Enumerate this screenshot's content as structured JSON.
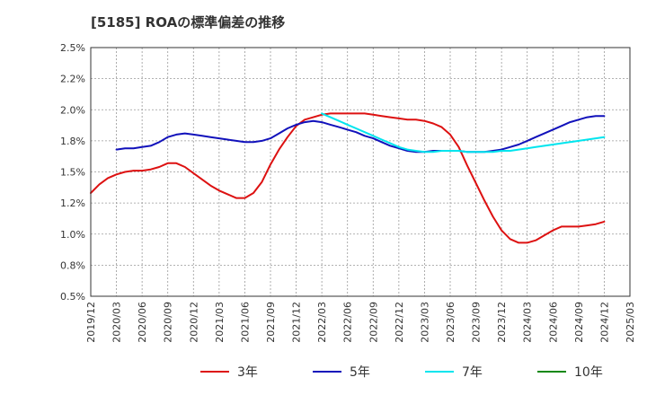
{
  "title": "[5185]  ROAの標準偏差の推移",
  "chart_data": {
    "type": "line",
    "title": "[5185]  ROAの標準偏差の推移",
    "xlabel": "",
    "ylabel": "",
    "ylim": [
      0.5,
      2.5
    ],
    "x_tick_labels": [
      "2019/12",
      "2020/03",
      "2020/06",
      "2020/09",
      "2020/12",
      "2021/03",
      "2021/06",
      "2021/09",
      "2021/12",
      "2022/03",
      "2022/06",
      "2022/09",
      "2022/12",
      "2023/03",
      "2023/06",
      "2023/09",
      "2023/12",
      "2024/03",
      "2024/06",
      "2024/09",
      "2024/12",
      "2025/03"
    ],
    "y_tick_values": [
      0.5,
      0.75,
      1.0,
      1.25,
      1.5,
      1.75,
      2.0,
      2.25,
      2.5
    ],
    "y_tick_labels": [
      "0.5%",
      "0.8%",
      "1.0%",
      "1.2%",
      "1.5%",
      "1.8%",
      "2.0%",
      "2.2%",
      "2.5%"
    ],
    "grid": true,
    "legend_position": "bottom",
    "series": [
      {
        "name": "3年",
        "color": "#dd1111",
        "points": [
          [
            "2019/12",
            1.33
          ],
          [
            "2020/01",
            1.4
          ],
          [
            "2020/02",
            1.45
          ],
          [
            "2020/03",
            1.48
          ],
          [
            "2020/04",
            1.5
          ],
          [
            "2020/05",
            1.51
          ],
          [
            "2020/06",
            1.51
          ],
          [
            "2020/07",
            1.52
          ],
          [
            "2020/08",
            1.54
          ],
          [
            "2020/09",
            1.57
          ],
          [
            "2020/10",
            1.57
          ],
          [
            "2020/11",
            1.54
          ],
          [
            "2020/12",
            1.49
          ],
          [
            "2021/01",
            1.44
          ],
          [
            "2021/02",
            1.39
          ],
          [
            "2021/03",
            1.35
          ],
          [
            "2021/04",
            1.32
          ],
          [
            "2021/05",
            1.29
          ],
          [
            "2021/06",
            1.29
          ],
          [
            "2021/07",
            1.33
          ],
          [
            "2021/08",
            1.42
          ],
          [
            "2021/09",
            1.56
          ],
          [
            "2021/10",
            1.68
          ],
          [
            "2021/11",
            1.78
          ],
          [
            "2021/12",
            1.87
          ],
          [
            "2022/01",
            1.92
          ],
          [
            "2022/02",
            1.94
          ],
          [
            "2022/03",
            1.96
          ],
          [
            "2022/04",
            1.97
          ],
          [
            "2022/05",
            1.97
          ],
          [
            "2022/06",
            1.97
          ],
          [
            "2022/07",
            1.97
          ],
          [
            "2022/08",
            1.97
          ],
          [
            "2022/09",
            1.96
          ],
          [
            "2022/10",
            1.95
          ],
          [
            "2022/11",
            1.94
          ],
          [
            "2022/12",
            1.93
          ],
          [
            "2023/01",
            1.92
          ],
          [
            "2023/02",
            1.92
          ],
          [
            "2023/03",
            1.91
          ],
          [
            "2023/04",
            1.89
          ],
          [
            "2023/05",
            1.86
          ],
          [
            "2023/06",
            1.8
          ],
          [
            "2023/07",
            1.7
          ],
          [
            "2023/08",
            1.55
          ],
          [
            "2023/09",
            1.41
          ],
          [
            "2023/10",
            1.27
          ],
          [
            "2023/11",
            1.14
          ],
          [
            "2023/12",
            1.03
          ],
          [
            "2024/01",
            0.96
          ],
          [
            "2024/02",
            0.93
          ],
          [
            "2024/03",
            0.93
          ],
          [
            "2024/04",
            0.95
          ],
          [
            "2024/05",
            0.99
          ],
          [
            "2024/06",
            1.03
          ],
          [
            "2024/07",
            1.06
          ],
          [
            "2024/08",
            1.06
          ],
          [
            "2024/09",
            1.06
          ],
          [
            "2024/10",
            1.07
          ],
          [
            "2024/11",
            1.08
          ],
          [
            "2024/12",
            1.1
          ]
        ]
      },
      {
        "name": "5年",
        "color": "#1111bb",
        "points": [
          [
            "2020/03",
            1.68
          ],
          [
            "2020/04",
            1.69
          ],
          [
            "2020/05",
            1.69
          ],
          [
            "2020/06",
            1.7
          ],
          [
            "2020/07",
            1.71
          ],
          [
            "2020/08",
            1.74
          ],
          [
            "2020/09",
            1.78
          ],
          [
            "2020/10",
            1.8
          ],
          [
            "2020/11",
            1.81
          ],
          [
            "2020/12",
            1.8
          ],
          [
            "2021/01",
            1.79
          ],
          [
            "2021/02",
            1.78
          ],
          [
            "2021/03",
            1.77
          ],
          [
            "2021/04",
            1.76
          ],
          [
            "2021/05",
            1.75
          ],
          [
            "2021/06",
            1.74
          ],
          [
            "2021/07",
            1.74
          ],
          [
            "2021/08",
            1.75
          ],
          [
            "2021/09",
            1.77
          ],
          [
            "2021/10",
            1.81
          ],
          [
            "2021/11",
            1.85
          ],
          [
            "2021/12",
            1.88
          ],
          [
            "2022/01",
            1.9
          ],
          [
            "2022/02",
            1.91
          ],
          [
            "2022/03",
            1.9
          ],
          [
            "2022/04",
            1.88
          ],
          [
            "2022/05",
            1.86
          ],
          [
            "2022/06",
            1.84
          ],
          [
            "2022/07",
            1.82
          ],
          [
            "2022/08",
            1.79
          ],
          [
            "2022/09",
            1.77
          ],
          [
            "2022/10",
            1.74
          ],
          [
            "2022/11",
            1.71
          ],
          [
            "2022/12",
            1.69
          ],
          [
            "2023/01",
            1.67
          ],
          [
            "2023/02",
            1.66
          ],
          [
            "2023/03",
            1.66
          ],
          [
            "2023/04",
            1.67
          ],
          [
            "2023/05",
            1.67
          ],
          [
            "2023/06",
            1.67
          ],
          [
            "2023/07",
            1.67
          ],
          [
            "2023/08",
            1.66
          ],
          [
            "2023/09",
            1.66
          ],
          [
            "2023/10",
            1.66
          ],
          [
            "2023/11",
            1.67
          ],
          [
            "2023/12",
            1.68
          ],
          [
            "2024/01",
            1.7
          ],
          [
            "2024/02",
            1.72
          ],
          [
            "2024/03",
            1.75
          ],
          [
            "2024/04",
            1.78
          ],
          [
            "2024/05",
            1.81
          ],
          [
            "2024/06",
            1.84
          ],
          [
            "2024/07",
            1.87
          ],
          [
            "2024/08",
            1.9
          ],
          [
            "2024/09",
            1.92
          ],
          [
            "2024/10",
            1.94
          ],
          [
            "2024/11",
            1.95
          ],
          [
            "2024/12",
            1.95
          ]
        ]
      },
      {
        "name": "7年",
        "color": "#00e5ee",
        "points": [
          [
            "2022/03",
            1.97
          ],
          [
            "2022/04",
            1.94
          ],
          [
            "2022/05",
            1.91
          ],
          [
            "2022/06",
            1.88
          ],
          [
            "2022/07",
            1.85
          ],
          [
            "2022/08",
            1.82
          ],
          [
            "2022/09",
            1.79
          ],
          [
            "2022/10",
            1.76
          ],
          [
            "2022/11",
            1.73
          ],
          [
            "2022/12",
            1.7
          ],
          [
            "2023/01",
            1.68
          ],
          [
            "2023/02",
            1.67
          ],
          [
            "2023/03",
            1.66
          ],
          [
            "2023/04",
            1.66
          ],
          [
            "2023/05",
            1.67
          ],
          [
            "2023/06",
            1.67
          ],
          [
            "2023/07",
            1.67
          ],
          [
            "2023/08",
            1.66
          ],
          [
            "2023/09",
            1.66
          ],
          [
            "2023/10",
            1.66
          ],
          [
            "2023/11",
            1.66
          ],
          [
            "2023/12",
            1.67
          ],
          [
            "2024/01",
            1.67
          ],
          [
            "2024/02",
            1.68
          ],
          [
            "2024/03",
            1.69
          ],
          [
            "2024/04",
            1.7
          ],
          [
            "2024/05",
            1.71
          ],
          [
            "2024/06",
            1.72
          ],
          [
            "2024/07",
            1.73
          ],
          [
            "2024/08",
            1.74
          ],
          [
            "2024/09",
            1.75
          ],
          [
            "2024/10",
            1.76
          ],
          [
            "2024/11",
            1.77
          ],
          [
            "2024/12",
            1.78
          ]
        ]
      },
      {
        "name": "10年",
        "color": "#118811",
        "points": []
      }
    ]
  }
}
